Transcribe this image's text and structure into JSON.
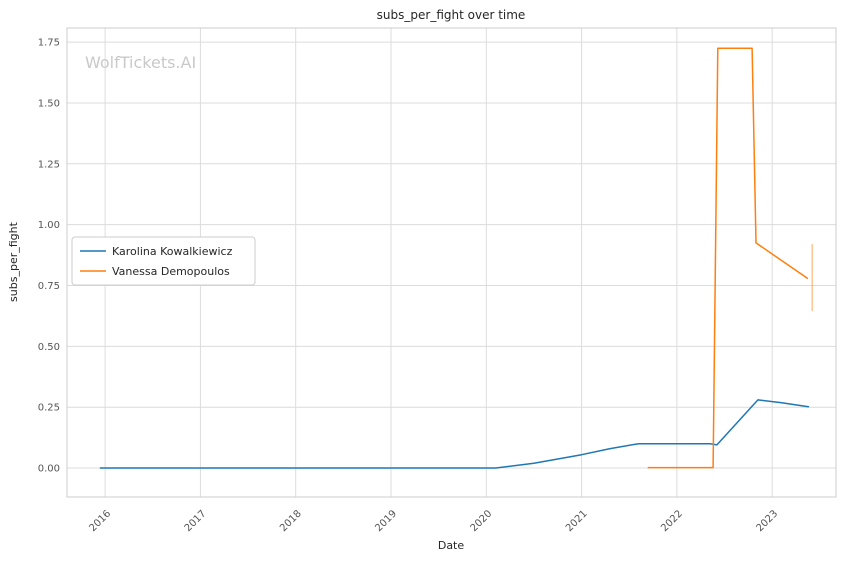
{
  "watermark": "WolfTickets.AI",
  "chart_data": {
    "type": "line",
    "title": "subs_per_fight over time",
    "xlabel": "Date",
    "ylabel": "subs_per_fight",
    "x_ticks": [
      2016,
      2017,
      2018,
      2019,
      2020,
      2021,
      2022,
      2023
    ],
    "y_ticks": [
      0.0,
      0.25,
      0.5,
      0.75,
      1.0,
      1.25,
      1.5,
      1.75
    ],
    "xlim": [
      2015.6,
      2023.67
    ],
    "ylim": [
      -0.119,
      1.808
    ],
    "grid": true,
    "legend_position": "center-left",
    "colors": {
      "grid": "#dcdcdc",
      "spine": "#cccccc",
      "blue": "#1f77b4",
      "orange": "#ff7f0e"
    },
    "series": [
      {
        "name": "Karolina Kowalkiewicz",
        "color": "#1f77b4",
        "points": [
          [
            2015.95,
            0.0
          ],
          [
            2020.1,
            0.0
          ],
          [
            2020.5,
            0.02
          ],
          [
            2021.0,
            0.055
          ],
          [
            2021.3,
            0.08
          ],
          [
            2021.6,
            0.1
          ],
          [
            2022.35,
            0.1
          ],
          [
            2022.42,
            0.095
          ],
          [
            2022.85,
            0.28
          ],
          [
            2023.1,
            0.268
          ],
          [
            2023.38,
            0.252
          ]
        ]
      },
      {
        "name": "Vanessa Demopoulos",
        "color": "#ff7f0e",
        "points": [
          [
            2021.7,
            0.002
          ],
          [
            2022.38,
            0.002
          ],
          [
            2022.43,
            1.725
          ],
          [
            2022.79,
            1.725
          ],
          [
            2022.83,
            0.925
          ],
          [
            2023.37,
            0.78
          ]
        ]
      }
    ],
    "extra_segments": [
      {
        "color": "#ff7f0e",
        "opacity": 0.45,
        "points": [
          [
            2023.42,
            0.645
          ],
          [
            2023.42,
            0.92
          ]
        ]
      }
    ]
  }
}
